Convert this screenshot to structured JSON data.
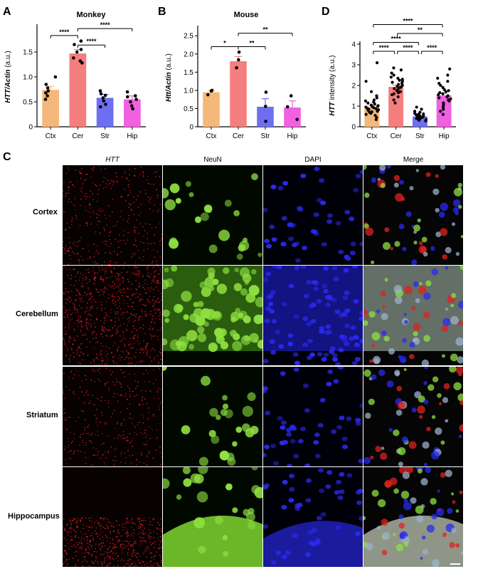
{
  "chart_data": [
    {
      "panel": "A",
      "type": "bar",
      "title": "Monkey",
      "ylabel_italic": "HTT/Actin",
      "ylabel_suffix": " (a.u.)",
      "categories": [
        "Ctx",
        "Cer",
        "Str",
        "Hip"
      ],
      "values": [
        0.74,
        1.47,
        0.58,
        0.55
      ],
      "sem": [
        0.07,
        0.08,
        0.07,
        0.07
      ],
      "points": [
        [
          0.55,
          0.62,
          0.68,
          0.72,
          0.78,
          0.85,
          1.0
        ],
        [
          1.28,
          1.32,
          1.38,
          1.5,
          1.55,
          1.65,
          1.72
        ],
        [
          0.4,
          0.45,
          0.52,
          0.58,
          0.63,
          0.66,
          0.72
        ],
        [
          0.36,
          0.42,
          0.5,
          0.55,
          0.6,
          0.62,
          0.7
        ]
      ],
      "ylim": [
        0,
        2.0
      ],
      "yticks": [
        0,
        0.5,
        1.0,
        1.5
      ],
      "ytick_labels": [
        "0",
        "0.5",
        "1.0",
        "1.5"
      ],
      "colors": [
        "#f4b87a",
        "#f47e7e",
        "#6e6ef2",
        "#f060e0"
      ],
      "comparisons": [
        {
          "from": 0,
          "to": 1,
          "label": "****",
          "y": 1.83
        },
        {
          "from": 1,
          "to": 2,
          "label": "****",
          "y": 1.64
        },
        {
          "from": 1,
          "to": 3,
          "label": "****",
          "y": 1.97
        }
      ]
    },
    {
      "panel": "B",
      "type": "bar",
      "title": "Mouse",
      "ylabel_italic": "Htt/Actin",
      "ylabel_suffix": " (a.u.)",
      "categories": [
        "Ctx",
        "Cer",
        "Str",
        "Hip"
      ],
      "values": [
        0.95,
        1.8,
        0.55,
        0.53
      ],
      "sem": [
        0.05,
        0.13,
        0.22,
        0.18
      ],
      "points": [
        [
          0.88,
          0.98,
          1.0
        ],
        [
          1.62,
          1.84,
          2.05
        ],
        [
          0.15,
          0.56,
          0.95
        ],
        [
          0.2,
          0.55,
          0.85
        ]
      ],
      "ylim": [
        0,
        2.7
      ],
      "yticks": [
        0,
        0.5,
        1.0,
        1.5,
        2.0,
        2.5
      ],
      "ytick_labels": [
        "0",
        "0.5",
        "1.0",
        "1.5",
        "2.0",
        "2.5"
      ],
      "colors": [
        "#f4b87a",
        "#f47e7e",
        "#6e6ef2",
        "#f060e0"
      ],
      "comparisons": [
        {
          "from": 0,
          "to": 1,
          "label": "*",
          "y": 2.2
        },
        {
          "from": 1,
          "to": 2,
          "label": "**",
          "y": 2.2
        },
        {
          "from": 1,
          "to": 3,
          "label": "**",
          "y": 2.57
        }
      ]
    },
    {
      "panel": "D",
      "type": "bar",
      "title": "",
      "ylabel_italic": "HTT",
      "ylabel_suffix": " intensity (a.u.)",
      "categories": [
        "Ctx",
        "Cer",
        "Str",
        "Hip"
      ],
      "values": [
        0.95,
        1.93,
        0.5,
        1.52
      ],
      "sem": [
        0.08,
        0.09,
        0.04,
        0.1
      ],
      "points": [
        [
          0.35,
          0.45,
          0.55,
          0.6,
          0.65,
          0.7,
          0.72,
          0.75,
          0.8,
          0.82,
          0.85,
          0.88,
          0.9,
          0.92,
          0.95,
          0.98,
          1.0,
          1.02,
          1.05,
          1.1,
          1.15,
          1.2,
          1.25,
          1.3,
          1.4,
          1.5,
          1.7,
          2.2,
          3.1
        ],
        [
          1.15,
          1.3,
          1.45,
          1.55,
          1.6,
          1.65,
          1.7,
          1.75,
          1.8,
          1.85,
          1.9,
          1.92,
          1.95,
          2.0,
          2.05,
          2.1,
          2.15,
          2.2,
          2.25,
          2.3,
          2.35,
          2.4,
          2.5,
          2.6,
          2.75,
          2.85
        ],
        [
          0.28,
          0.32,
          0.35,
          0.38,
          0.4,
          0.42,
          0.44,
          0.46,
          0.48,
          0.5,
          0.52,
          0.54,
          0.56,
          0.58,
          0.6,
          0.62,
          0.65,
          0.7,
          0.75,
          0.85,
          0.95
        ],
        [
          0.6,
          0.75,
          0.85,
          0.95,
          1.05,
          1.15,
          1.25,
          1.3,
          1.35,
          1.4,
          1.45,
          1.5,
          1.55,
          1.6,
          1.65,
          1.7,
          1.75,
          1.8,
          1.9,
          2.0,
          2.1,
          2.2,
          2.35,
          2.5,
          2.8
        ]
      ],
      "ylim": [
        0,
        4
      ],
      "yticks": [
        0,
        1,
        2,
        3,
        4
      ],
      "ytick_labels": [
        "0",
        "1",
        "2",
        "3",
        "4"
      ],
      "colors": [
        "#f4b87a",
        "#f47e7e",
        "#6e6ef2",
        "#f060e0"
      ],
      "comparisons": [
        {
          "from": 0,
          "to": 1,
          "label": "****",
          "y": 3.5
        },
        {
          "from": 1,
          "to": 2,
          "label": "****",
          "y": 3.5
        },
        {
          "from": 2,
          "to": 3,
          "label": "****",
          "y": 3.5
        },
        {
          "from": 0,
          "to": 2,
          "label": "****",
          "y": 3.9
        },
        {
          "from": 1,
          "to": 3,
          "label": "**",
          "y": 4.5
        },
        {
          "from": 0,
          "to": 3,
          "label": "****",
          "y": 5.1
        }
      ]
    }
  ],
  "panel_c": {
    "letter": "C",
    "columns": [
      "HTT",
      "NeuN",
      "DAPI",
      "Merge"
    ],
    "rows": [
      "Cortex",
      "Cerebellum",
      "Striatum",
      "Hippocampus"
    ]
  },
  "panel_letters": [
    "A",
    "B",
    "C",
    "D"
  ]
}
